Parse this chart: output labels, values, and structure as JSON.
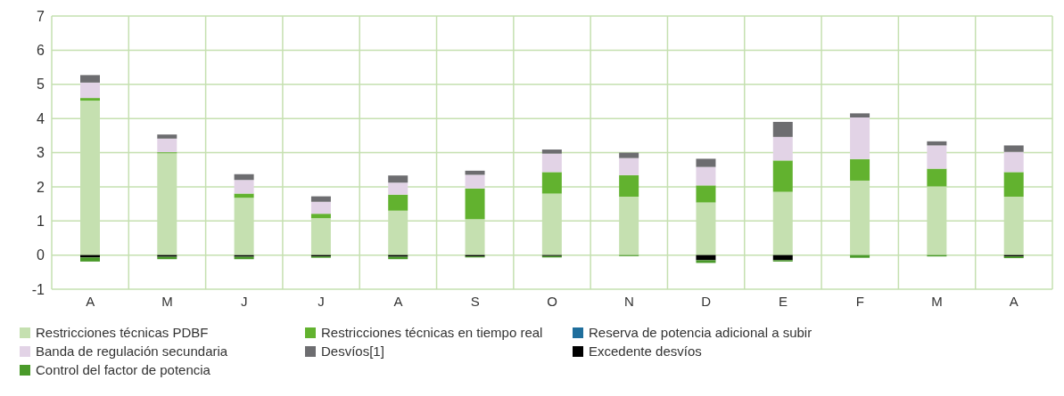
{
  "chart_data": {
    "type": "bar",
    "stacked": true,
    "categories": [
      "A",
      "M",
      "J",
      "J",
      "A",
      "S",
      "O",
      "N",
      "D",
      "E",
      "F",
      "M",
      "A"
    ],
    "series": [
      {
        "name": "Restricciones técnicas PDBF",
        "color": "#c5e0b0",
        "values": [
          4.52,
          2.98,
          1.68,
          1.08,
          1.3,
          1.05,
          1.8,
          1.71,
          1.54,
          1.85,
          2.18,
          2.01,
          1.71
        ]
      },
      {
        "name": "Restricciones técnicas en tiempo real",
        "color": "#62b22f",
        "values": [
          0.08,
          0.03,
          0.12,
          0.13,
          0.47,
          0.9,
          0.63,
          0.63,
          0.5,
          0.92,
          0.63,
          0.52,
          0.72
        ]
      },
      {
        "name": "Reserva de potencia adicional a subir",
        "color": "#1f6e9c",
        "values": [
          0,
          0,
          0,
          0,
          0,
          0,
          0,
          0,
          0,
          0,
          0,
          0,
          0
        ]
      },
      {
        "name": "Banda de regulación secundaria",
        "color": "#e2d3e6",
        "values": [
          0.45,
          0.4,
          0.4,
          0.35,
          0.35,
          0.4,
          0.54,
          0.5,
          0.54,
          0.69,
          1.22,
          0.68,
          0.59
        ]
      },
      {
        "name": "Desvíos[1]",
        "color": "#6d6d70",
        "values": [
          0.22,
          0.12,
          0.17,
          0.16,
          0.21,
          0.12,
          0.12,
          0.16,
          0.24,
          0.44,
          0.12,
          0.12,
          0.19
        ]
      },
      {
        "name": "Excedente desvíos",
        "color": "#000000",
        "values": [
          -0.07,
          -0.05,
          -0.05,
          -0.04,
          -0.05,
          -0.04,
          -0.03,
          null,
          -0.15,
          -0.15,
          null,
          0,
          -0.04
        ]
      },
      {
        "name": "Control del factor de potencia",
        "color": "#4a9a2a",
        "values": [
          -0.12,
          -0.07,
          -0.07,
          -0.04,
          -0.07,
          -0.03,
          -0.04,
          -0.03,
          -0.08,
          -0.04,
          -0.08,
          -0.04,
          -0.05
        ]
      }
    ],
    "ylim": [
      -1,
      7
    ],
    "yticks": [
      -1,
      0,
      1,
      2,
      3,
      4,
      5,
      6,
      7
    ],
    "grid": true,
    "legend": "bottom"
  }
}
